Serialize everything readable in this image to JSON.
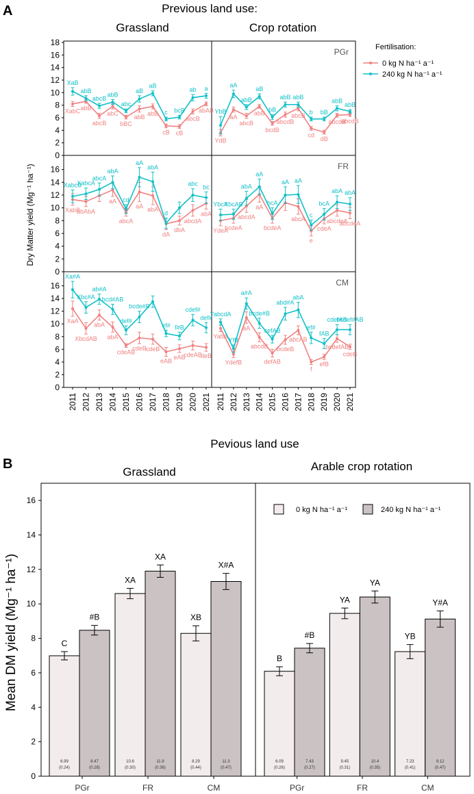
{
  "colors": {
    "n0": "#f08080",
    "n240": "#10c0c8",
    "bar0": "#f3ecec",
    "bar240": "#cbc3c3"
  },
  "panelA": {
    "label": "A",
    "title": "Previous land use:",
    "col_grass": "Grassland",
    "col_crop": "Crop rotation",
    "ylabel": "Dry Matter yield (Mg⁻¹ ha⁻¹)",
    "legend_title": "Fertilisation:",
    "legend_0": "0 kg N ha⁻¹ a⁻¹",
    "legend_240": "240 kg N ha⁻¹ a⁻¹",
    "yticks": [
      "0",
      "2",
      "4",
      "6",
      "8",
      "10",
      "12",
      "14",
      "16",
      "18"
    ],
    "years": [
      "2011",
      "2012",
      "2013",
      "2014",
      "2015",
      "2016",
      "2017",
      "2018",
      "2019",
      "2020",
      "2021"
    ]
  },
  "panelB": {
    "label": "B",
    "title": "Pevious land use",
    "col_grass": "Grassland",
    "col_crop": "Arable crop rotation",
    "ylabel": "Mean DM yield (Mg⁻¹ ha⁻¹)",
    "legend_0": "0 kg N ha⁻¹ a⁻¹",
    "legend_240": "240 kg N ha⁻¹ a⁻¹",
    "yticks": [
      "0",
      "2",
      "4",
      "6",
      "8",
      "10",
      "12",
      "14",
      "16"
    ]
  },
  "chart_data": [
    {
      "type": "line",
      "title": "Previous land use: Grassland / Crop rotation",
      "ylabel": "Dry Matter yield (Mg-1 ha-1)",
      "ylim": [
        0,
        18
      ],
      "x": [
        2011,
        2012,
        2013,
        2014,
        2015,
        2016,
        2017,
        2018,
        2019,
        2020,
        2021
      ],
      "panels": [
        {
          "name": "PGr",
          "land": "Grassland",
          "n0": [
            8.2,
            8.6,
            6.3,
            7.8,
            6.1,
            7.4,
            7.8,
            4.7,
            4.6,
            7.0,
            8.2
          ],
          "n0_err": [
            0.4,
            0.3,
            0.4,
            0.4,
            0.3,
            0.5,
            0.4,
            0.3,
            0.3,
            0.4,
            0.3
          ],
          "n240": [
            10.2,
            9.1,
            7.9,
            8.5,
            7.1,
            9.0,
            9.9,
            5.8,
            6.1,
            9.2,
            9.5
          ],
          "n240_err": [
            0.6,
            0.4,
            0.4,
            0.4,
            0.3,
            0.5,
            0.4,
            0.3,
            0.3,
            0.5,
            0.4
          ],
          "n0_labels": [
            "XabC",
            "abB",
            "abcB",
            "abC",
            "bBC",
            "abB",
            "abB",
            "cB",
            "cB",
            "abcB",
            "abAB"
          ],
          "n240_labels": [
            "XaB",
            "abB",
            "abcB",
            "abB",
            "abc",
            "aB",
            "aB",
            "c",
            "bcB",
            "ab",
            "a"
          ]
        },
        {
          "name": "FR",
          "land": "Grassland",
          "n0": [
            11.3,
            11.0,
            11.9,
            12.8,
            9.3,
            12.5,
            11.9,
            7.5,
            8.0,
            9.6,
            10.7
          ],
          "n0_err": [
            0.9,
            0.8,
            0.9,
            1.0,
            0.6,
            1.5,
            1.4,
            0.9,
            0.7,
            0.9,
            0.9
          ],
          "n240": [
            11.8,
            12.2,
            12.9,
            14.0,
            9.8,
            14.8,
            14.1,
            7.6,
            10.0,
            12.0,
            11.6
          ],
          "n240_err": [
            1.0,
            0.9,
            1.0,
            1.0,
            0.7,
            1.5,
            1.5,
            0.8,
            0.9,
            1.0,
            0.9
          ],
          "n0_labels": [
            "XabB",
            "abAbA",
            "",
            "aA",
            "abcA",
            "aA",
            "abA",
            "dA",
            "dbA",
            "abcdA",
            "abA"
          ],
          "n240_labels": [
            "XabcB",
            "XabcA",
            "abcA",
            "abA",
            "cd",
            "aA",
            "abA",
            "d",
            "",
            "abc",
            "bc"
          ]
        },
        {
          "name": "CM",
          "land": "Grassland",
          "n0": [
            12.4,
            9.3,
            11.4,
            9.5,
            6.6,
            7.8,
            7.6,
            5.6,
            6.1,
            6.6,
            6.3
          ],
          "n0_err": [
            1.2,
            0.9,
            0.8,
            0.8,
            0.3,
            0.9,
            0.8,
            0.7,
            0.6,
            0.7,
            0.6
          ],
          "n240": [
            15.4,
            12.6,
            13.9,
            12.3,
            9.0,
            11.1,
            13.5,
            8.5,
            8.1,
            10.6,
            9.4
          ],
          "n240_err": [
            1.3,
            0.9,
            0.8,
            0.8,
            0.7,
            0.9,
            0.9,
            0.5,
            0.6,
            0.9,
            0.8
          ],
          "n0_labels": [
            "XaA",
            "XbcdAB",
            "abA",
            "abA",
            "cdeAB",
            "cdeB",
            "cdeB",
            "eAB",
            "eAB",
            "cdeAB",
            "deB"
          ],
          "n240_labels": [
            "Xa#A",
            "Xbc#A",
            "ab#A",
            "bcd#AB",
            "def#",
            "bcde#B",
            "",
            "ef#",
            "f#B",
            "cdef#",
            "def#"
          ]
        },
        {
          "name": "PGr",
          "land": "Crop rotation",
          "n0": [
            3.6,
            7.3,
            6.3,
            7.8,
            5.1,
            6.5,
            7.5,
            4.3,
            3.7,
            6.4,
            6.5
          ],
          "n0_err": [
            0.5,
            0.4,
            0.4,
            0.3,
            0.3,
            0.4,
            0.4,
            0.3,
            0.3,
            0.3,
            0.3
          ],
          "n240": [
            4.8,
            9.8,
            7.7,
            9.4,
            6.1,
            8.1,
            8.1,
            5.8,
            5.8,
            7.5,
            7.0
          ],
          "n240_err": [
            1.4,
            0.6,
            0.4,
            0.4,
            0.4,
            0.4,
            0.4,
            0.3,
            0.3,
            0.4,
            0.3
          ],
          "n0_labels": [
            "YdB",
            "aA",
            "abcB",
            "abB",
            "bcdB",
            "abcdB",
            "abcB",
            "cd",
            "dB",
            "abcdB",
            "abcdB"
          ],
          "n240_labels": [
            "YbB",
            "aA",
            "abB",
            "aB",
            "bB",
            "abB",
            "abB",
            "b",
            "bB",
            "abB",
            "abB"
          ]
        },
        {
          "name": "FR",
          "land": "Crop rotation",
          "n0": [
            8.0,
            8.4,
            10.3,
            12.1,
            8.4,
            10.8,
            10.2,
            6.4,
            8.3,
            9.6,
            9.2
          ],
          "n0_err": [
            0.8,
            0.8,
            1.0,
            1.2,
            0.8,
            1.2,
            1.2,
            0.8,
            0.8,
            0.9,
            0.9
          ],
          "n240": [
            8.9,
            9.0,
            11.5,
            13.3,
            9.1,
            12.0,
            12.1,
            7.3,
            9.0,
            10.9,
            10.6
          ],
          "n240_err": [
            0.9,
            0.8,
            1.1,
            1.2,
            0.9,
            1.3,
            1.4,
            0.8,
            0.9,
            1.0,
            1.0
          ],
          "n0_labels": [
            "YdeA",
            "bcdeA",
            "abcdA",
            "aA",
            "bcdeA",
            "",
            "abcA",
            "e",
            "cdeA",
            "abcdeA",
            "abcdeA"
          ],
          "n240_labels": [
            "YbcA",
            "YbcAB",
            "abA",
            "aA",
            "bcA",
            "aA",
            "aA",
            "c",
            "bcA",
            "abA",
            "abA"
          ]
        },
        {
          "name": "CM",
          "land": "Crop rotation",
          "n0": [
            9.3,
            5.2,
            11.0,
            7.9,
            5.4,
            7.5,
            9.0,
            4.0,
            4.8,
            7.7,
            6.4
          ],
          "n0_err": [
            0.5,
            0.5,
            0.9,
            0.7,
            0.6,
            0.7,
            0.7,
            0.4,
            0.4,
            0.6,
            0.4
          ],
          "n240": [
            10.3,
            6.1,
            13.2,
            10.1,
            7.6,
            11.6,
            12.2,
            7.8,
            6.9,
            9.1,
            9.1
          ],
          "n240_err": [
            0.5,
            0.6,
            0.9,
            0.8,
            0.6,
            1.0,
            1.2,
            0.9,
            0.8,
            0.8,
            0.8
          ],
          "n0_labels": [
            "YabA",
            "YdefB",
            "aA",
            "abcdB",
            "defAB",
            "bcdeB",
            "abcAB",
            "f",
            "efB",
            "bcdefAB",
            "cdeB"
          ],
          "n240_labels": [
            "YabcdA",
            "YfB",
            "a#A",
            "bcde#B",
            "cefAB",
            "abd#A",
            "abA",
            "ef#",
            "fAB",
            "cdefAB",
            "bcdef#AB"
          ]
        }
      ]
    },
    {
      "type": "bar",
      "title": "Pevious land use",
      "ylabel": "Mean DM yield (Mg-1 ha-1)",
      "ylim": [
        0,
        17
      ],
      "categories": [
        "PGr",
        "FR",
        "CM"
      ],
      "groups": [
        {
          "name": "Grassland",
          "series": [
            {
              "name": "0 kg N ha-1 a-1",
              "values": [
                6.99,
                10.6,
                8.29
              ],
              "errors": [
                0.24,
                0.3,
                0.44
              ],
              "value_labels": [
                "6.99",
                "10.6",
                "8.29"
              ],
              "error_labels": [
                "(0.24)",
                "(0.30)",
                "(0.44)"
              ],
              "letters": [
                "C",
                "XA",
                "XB"
              ]
            },
            {
              "name": "240 kg N ha-1 a-1",
              "values": [
                8.47,
                11.9,
                11.3
              ],
              "errors": [
                0.28,
                0.36,
                0.47
              ],
              "value_labels": [
                "8.47",
                "11.9",
                "11.3"
              ],
              "error_labels": [
                "(0.28)",
                "(0.36)",
                "(0.47)"
              ],
              "letters": [
                "#B",
                "XA",
                "X#A"
              ]
            }
          ]
        },
        {
          "name": "Arable crop rotation",
          "series": [
            {
              "name": "0 kg N ha-1 a-1",
              "values": [
                6.09,
                9.45,
                7.23
              ],
              "errors": [
                0.26,
                0.31,
                0.41
              ],
              "value_labels": [
                "6.09",
                "9.45",
                "7.23"
              ],
              "error_labels": [
                "(0.26)",
                "(0.31)",
                "(0.41)"
              ],
              "letters": [
                "B",
                "YA",
                "YB"
              ]
            },
            {
              "name": "240 kg N ha-1 a-1",
              "values": [
                7.43,
                10.4,
                9.12
              ],
              "errors": [
                0.27,
                0.35,
                0.47
              ],
              "value_labels": [
                "7.43",
                "10.4",
                "9.12"
              ],
              "error_labels": [
                "(0.27)",
                "(0.35)",
                "(0.47)"
              ],
              "letters": [
                "#B",
                "YA",
                "Y#A"
              ]
            }
          ]
        }
      ]
    }
  ]
}
